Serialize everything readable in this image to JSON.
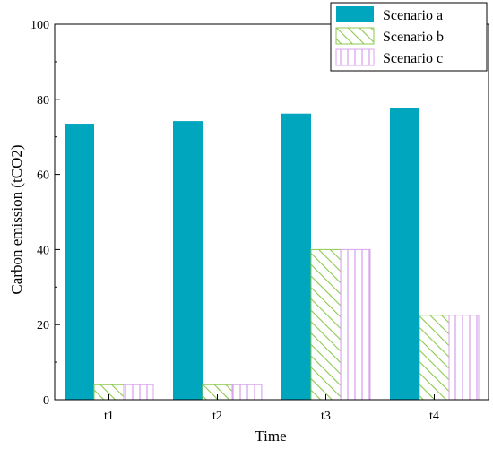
{
  "chart_data": {
    "type": "bar",
    "categories": [
      "t1",
      "t2",
      "t3",
      "t4"
    ],
    "series": [
      {
        "name": "Scenario a",
        "values": [
          73.5,
          74.2,
          76.2,
          77.8
        ],
        "color": "#00a6bd",
        "pattern": "solid"
      },
      {
        "name": "Scenario b",
        "values": [
          4.0,
          4.0,
          40.0,
          22.5
        ],
        "color": "#8cc94f",
        "pattern": "diagonal-hatch"
      },
      {
        "name": "Scenario c",
        "values": [
          4.0,
          4.0,
          40.0,
          22.5
        ],
        "color": "#d9a6ec",
        "pattern": "vertical-hatch"
      }
    ],
    "title": "",
    "xlabel": "Time",
    "ylabel": "Carbon emission (tCO2)",
    "ylim": [
      0,
      100
    ],
    "yticks": [
      0,
      20,
      40,
      60,
      80,
      100
    ],
    "grid": false,
    "legend_position": "top-right"
  }
}
